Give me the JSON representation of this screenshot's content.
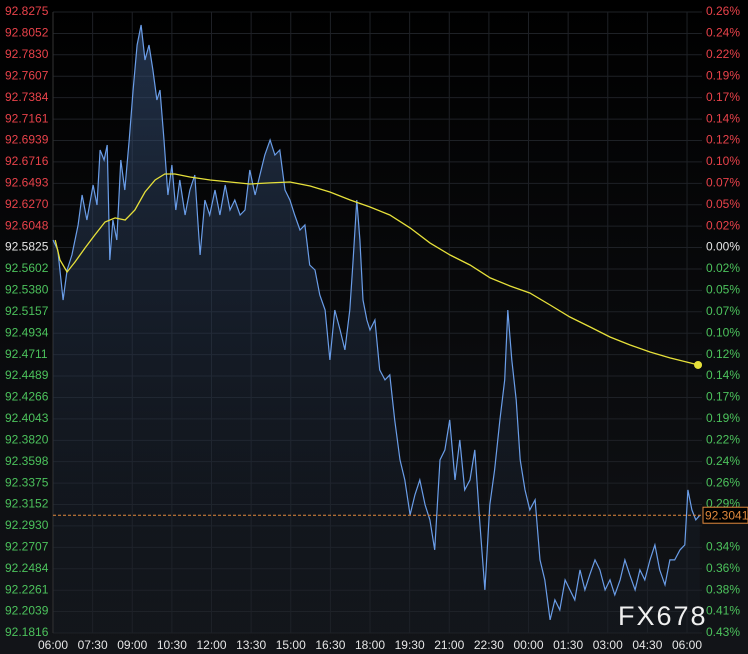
{
  "chart_data": {
    "type": "line",
    "watermark": "FX678",
    "xlim": [
      0,
      1474
    ],
    "xticks": [
      {
        "value": 0,
        "label": "06:00"
      },
      {
        "value": 90,
        "label": "07:30"
      },
      {
        "value": 180,
        "label": "09:00"
      },
      {
        "value": 270,
        "label": "10:30"
      },
      {
        "value": 360,
        "label": "12:00"
      },
      {
        "value": 450,
        "label": "13:30"
      },
      {
        "value": 540,
        "label": "15:00"
      },
      {
        "value": 630,
        "label": "16:30"
      },
      {
        "value": 720,
        "label": "18:00"
      },
      {
        "value": 810,
        "label": "19:30"
      },
      {
        "value": 900,
        "label": "21:00"
      },
      {
        "value": 990,
        "label": "22:30"
      },
      {
        "value": 1080,
        "label": "00:00"
      },
      {
        "value": 1170,
        "label": "01:30"
      },
      {
        "value": 1260,
        "label": "03:00"
      },
      {
        "value": 1350,
        "label": "04:30"
      },
      {
        "value": 1440,
        "label": "06:00"
      }
    ],
    "ylim": [
      92.1816,
      92.8275
    ],
    "yticks": [
      92.8275,
      92.8052,
      {
        "value": 92.783,
        "label": "92.7830"
      },
      92.7607,
      92.7384,
      92.7161,
      92.6939,
      92.6716,
      92.6493,
      {
        "value": 92.627,
        "label": "92.6270"
      },
      92.6048,
      92.5825,
      92.5602,
      {
        "value": 92.538,
        "label": "92.5380"
      },
      92.5157,
      92.4934,
      92.4711,
      92.4489,
      92.4266,
      92.4043,
      {
        "value": 92.382,
        "label": "92.3820"
      },
      92.3598,
      92.3375,
      92.3152,
      {
        "value": 92.293,
        "label": "92.2930"
      },
      92.2707,
      92.2484,
      92.2261,
      92.2039,
      92.1816
    ],
    "y2lim": [
      -0.433,
      0.2646
    ],
    "y2ticks": [
      {
        "value": 0.2646,
        "label": "0.26%"
      },
      {
        "value": 0.2405,
        "label": "0.24%"
      },
      {
        "value": 0.2166,
        "label": "0.22%"
      },
      {
        "value": 0.1925,
        "label": "0.19%"
      },
      {
        "value": 0.1684,
        "label": "0.17%"
      },
      {
        "value": 0.1443,
        "label": "0.14%"
      },
      {
        "value": 0.1203,
        "label": "0.12%"
      },
      {
        "value": 0.0962,
        "label": "0.10%"
      },
      {
        "value": 0.0722,
        "label": "0.07%"
      },
      {
        "value": 0.0481,
        "label": "0.05%"
      },
      {
        "value": 0.0241,
        "label": "0.02%"
      },
      {
        "value": 0,
        "label": "0.00%"
      },
      {
        "value": -0.0241,
        "label": "0.02%"
      },
      {
        "value": -0.0481,
        "label": "0.05%"
      },
      {
        "value": -0.0722,
        "label": "0.07%"
      },
      {
        "value": -0.0962,
        "label": "0.10%"
      },
      {
        "value": -0.1203,
        "label": "0.12%"
      },
      {
        "value": -0.1443,
        "label": "0.14%"
      },
      {
        "value": -0.1684,
        "label": "0.17%"
      },
      {
        "value": -0.1925,
        "label": "0.19%"
      },
      {
        "value": -0.2166,
        "label": "0.22%"
      },
      {
        "value": -0.2405,
        "label": "0.24%"
      },
      {
        "value": -0.2646,
        "label": "0.26%"
      },
      {
        "value": -0.2887,
        "label": "0.29%"
      },
      {
        "value": -0.3368,
        "label": "0.34%"
      },
      {
        "value": -0.3609,
        "label": "0.36%"
      },
      {
        "value": -0.385,
        "label": "0.38%"
      },
      {
        "value": -0.4089,
        "label": "0.41%"
      },
      {
        "value": -0.433,
        "label": "0.43%"
      }
    ],
    "label_colors": {
      "up": "#e8424a",
      "zero": "#e6e6e6",
      "down": "#4cc25c"
    },
    "grid": true,
    "last_price": 92.3041,
    "last_price_color": "#e0883c",
    "series": [
      {
        "color": "#6a9de8",
        "x": [
          0,
          11,
          23,
          32,
          43,
          57,
          66,
          77,
          91,
          100,
          107,
          116,
          123,
          129,
          136,
          145,
          154,
          163,
          173,
          182,
          191,
          200,
          209,
          218,
          227,
          236,
          243,
          252,
          261,
          270,
          279,
          288,
          300,
          311,
          322,
          334,
          345,
          356,
          368,
          379,
          391,
          402,
          413,
          425,
          436,
          447,
          459,
          470,
          481,
          493,
          504,
          515,
          527,
          538,
          549,
          561,
          572,
          583,
          595,
          606,
          618,
          629,
          640,
          652,
          663,
          674,
          681,
          690,
          697,
          704,
          713,
          720,
          731,
          742,
          754,
          765,
          776,
          788,
          799,
          811,
          822,
          833,
          845,
          856,
          867,
          879,
          890,
          901,
          913,
          924,
          935,
          947,
          958,
          969,
          981,
          992,
          1003,
          1015,
          1026,
          1033,
          1042,
          1052,
          1061,
          1072,
          1083,
          1095,
          1106,
          1117,
          1129,
          1140,
          1151,
          1163,
          1174,
          1185,
          1197,
          1208,
          1219,
          1231,
          1242,
          1254,
          1265,
          1276,
          1288,
          1299,
          1310,
          1322,
          1333,
          1344,
          1356,
          1367,
          1378,
          1390,
          1401,
          1412,
          1424,
          1435,
          1442,
          1451,
          1460,
          1469
        ],
        "values": [
          92.5904,
          92.58,
          92.528,
          92.5592,
          92.5748,
          92.606,
          92.6372,
          92.6112,
          92.6476,
          92.6268,
          92.684,
          92.6736,
          92.6892,
          92.5696,
          92.6112,
          92.5904,
          92.6736,
          92.6424,
          92.6944,
          92.7464,
          92.7932,
          92.814,
          92.7776,
          92.7932,
          92.7672,
          92.736,
          92.7464,
          92.6944,
          92.6372,
          92.6684,
          92.6216,
          92.6528,
          92.6164,
          92.6424,
          92.658,
          92.5748,
          92.632,
          92.6164,
          92.6424,
          92.6164,
          92.6476,
          92.6216,
          92.632,
          92.6164,
          92.6216,
          92.6632,
          92.6372,
          92.658,
          92.6788,
          92.6944,
          92.6788,
          92.684,
          92.6424,
          92.632,
          92.6164,
          92.6008,
          92.606,
          92.5644,
          92.5592,
          92.5332,
          92.5176,
          92.4656,
          92.5176,
          92.4968,
          92.476,
          92.5176,
          92.5644,
          92.632,
          92.5904,
          92.528,
          92.5072,
          92.4968,
          92.5072,
          92.4552,
          92.4448,
          92.45,
          92.4032,
          92.3616,
          92.3408,
          92.3044,
          92.3252,
          92.3408,
          92.3148,
          92.2992,
          92.268,
          92.3616,
          92.372,
          92.4032,
          92.3408,
          92.3824,
          92.3304,
          92.3408,
          92.372,
          92.2992,
          92.2264,
          92.3148,
          92.3512,
          92.4032,
          92.4448,
          92.5176,
          92.4656,
          92.424,
          92.3616,
          92.3304,
          92.3096,
          92.32,
          92.2576,
          92.2368,
          92.1952,
          92.216,
          92.2056,
          92.2368,
          92.2264,
          92.216,
          92.2472,
          92.2264,
          92.242,
          92.2576,
          92.2472,
          92.2264,
          92.2368,
          92.2212,
          92.2368,
          92.2576,
          92.242,
          92.2264,
          92.2472,
          92.2368,
          92.2576,
          92.2732,
          92.2472,
          92.2316,
          92.2576,
          92.2576,
          92.268,
          92.2732,
          92.3304,
          92.3096,
          92.2992,
          92.3041
        ]
      },
      {
        "color": "#e6e03a",
        "x": [
          5,
          16,
          32,
          50,
          73,
          95,
          118,
          141,
          164,
          186,
          209,
          232,
          254,
          277,
          311,
          357,
          402,
          447,
          493,
          538,
          584,
          629,
          675,
          720,
          765,
          811,
          856,
          902,
          947,
          993,
          1038,
          1083,
          1129,
          1174,
          1220,
          1265,
          1310,
          1356,
          1401,
          1447,
          1465
        ],
        "values": [
          92.5904,
          92.5696,
          92.5571,
          92.5675,
          92.5821,
          92.5956,
          92.6091,
          92.6133,
          92.6112,
          92.6216,
          92.6403,
          92.6528,
          92.659,
          92.659,
          92.6559,
          92.6528,
          92.6507,
          92.6486,
          92.6497,
          92.6507,
          92.6465,
          92.6403,
          92.632,
          92.6247,
          92.6164,
          92.6029,
          92.5873,
          92.5748,
          92.5644,
          92.5509,
          92.5425,
          92.5352,
          92.5228,
          92.5103,
          92.4999,
          92.4895,
          92.4812,
          92.4739,
          92.4677,
          92.4625,
          92.4604
        ]
      }
    ]
  }
}
